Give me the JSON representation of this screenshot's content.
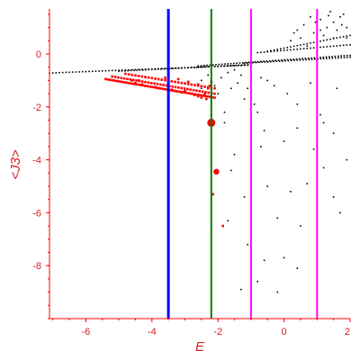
{
  "chart_data": {
    "type": "scatter",
    "title": "",
    "xlabel": "E",
    "ylabel": "<J3>",
    "xlim": [
      -7.1,
      2.0
    ],
    "ylim": [
      -10.0,
      1.7
    ],
    "grid": false,
    "colors": {
      "axis": "#ff0000",
      "black_points": "#000000",
      "red_points": "#ff0000",
      "blue_line": "#0000ff",
      "green_line": "#008000",
      "magenta_line": "#ff00ff"
    },
    "x_ticks": [
      {
        "value": -6,
        "label": "-6"
      },
      {
        "value": -4,
        "label": "-4"
      },
      {
        "value": -2,
        "label": "-2"
      },
      {
        "value": 0,
        "label": "0"
      },
      {
        "value": 2,
        "label": "2"
      }
    ],
    "y_ticks": [
      {
        "value": 0,
        "label": "0"
      },
      {
        "value": -2,
        "label": "-2"
      },
      {
        "value": -4,
        "label": "-4"
      },
      {
        "value": -6,
        "label": "-6"
      },
      {
        "value": -8,
        "label": "-8"
      }
    ],
    "x_minor_step": 0.5,
    "y_minor_step": 0.5,
    "vertical_lines": [
      {
        "x": -3.5,
        "color": "#0000ff",
        "width": 3
      },
      {
        "x": -2.2,
        "color": "#008000",
        "width": 2
      },
      {
        "x": -1.0,
        "color": "#ff00ff",
        "width": 2
      },
      {
        "x": 1.0,
        "color": "#ff00ff",
        "width": 2
      }
    ],
    "series": [
      {
        "color": "#000000",
        "marker": "small-dot",
        "bands": [
          {
            "x_start": -7.1,
            "x_end": -1.0,
            "y_start": -0.72,
            "y_end": -0.42,
            "step": 0.1
          },
          {
            "x_start": -5.0,
            "x_end": -1.0,
            "y_start": -0.65,
            "y_end": -0.4,
            "step": 0.09
          },
          {
            "x_start": -2.6,
            "x_end": 2.0,
            "y_start": -0.45,
            "y_end": -0.05,
            "step": 0.09
          },
          {
            "x_start": -1.2,
            "x_end": 2.0,
            "y_start": -0.35,
            "y_end": -0.12,
            "step": 0.09
          },
          {
            "x_start": -0.8,
            "x_end": 2.0,
            "y_start": 0.05,
            "y_end": 0.35,
            "step": 0.1
          },
          {
            "x_start": -0.5,
            "x_end": 2.0,
            "y_start": 0.1,
            "y_end": 0.7,
            "step": 0.1
          }
        ],
        "points": [
          [
            0.4,
            0.9
          ],
          [
            0.6,
            1.1
          ],
          [
            0.9,
            0.8
          ],
          [
            1.1,
            1.3
          ],
          [
            1.3,
            1.0
          ],
          [
            1.5,
            1.2
          ],
          [
            1.7,
            1.4
          ],
          [
            1.9,
            1.0
          ],
          [
            0.5,
            0.6
          ],
          [
            0.8,
            1.4
          ],
          [
            1.2,
            0.7
          ],
          [
            1.6,
            0.9
          ],
          [
            1.8,
            1.5
          ],
          [
            0.2,
            0.5
          ],
          [
            1.4,
            1.6
          ],
          [
            1.0,
            0.4
          ],
          [
            0.7,
            0.3
          ],
          [
            1.9,
            0.6
          ],
          [
            1.1,
            0.9
          ],
          [
            0.3,
            0.8
          ],
          [
            1.5,
            0.6
          ],
          [
            1.75,
            1.1
          ],
          [
            0.95,
            1.2
          ],
          [
            1.35,
            1.45
          ],
          [
            -2.5,
            -1.0
          ],
          [
            -2.3,
            -0.8
          ],
          [
            -2.1,
            -1.2
          ],
          [
            -1.9,
            -0.9
          ],
          [
            -1.7,
            -0.7
          ],
          [
            -1.5,
            -0.6
          ],
          [
            -1.3,
            -0.8
          ],
          [
            -2.0,
            -1.5
          ],
          [
            -1.6,
            -1.3
          ],
          [
            -2.2,
            -1.9
          ],
          [
            -1.8,
            -2.2
          ],
          [
            -1.2,
            -1.7
          ],
          [
            -0.9,
            -1.9
          ],
          [
            -1.4,
            -1.1
          ],
          [
            -0.7,
            -0.9
          ],
          [
            -0.3,
            -1.2
          ],
          [
            0.1,
            -1.5
          ],
          [
            0.4,
            -1.9
          ],
          [
            1.1,
            -2.3
          ],
          [
            -2.5,
            -1.3
          ],
          [
            -1.1,
            -1.3
          ],
          [
            -0.5,
            -1.0
          ],
          [
            0.8,
            -1.1
          ],
          [
            1.6,
            -1.3
          ],
          [
            -1.6,
            -4.4
          ],
          [
            -1.2,
            -5.4
          ],
          [
            -1.0,
            -5.9
          ],
          [
            -0.7,
            -3.5
          ],
          [
            -0.5,
            -5.0
          ],
          [
            -0.2,
            -6.2
          ],
          [
            0.2,
            -5.2
          ],
          [
            0.5,
            -6.5
          ],
          [
            0.7,
            -4.9
          ],
          [
            1.2,
            -4.3
          ],
          [
            1.5,
            -5.4
          ],
          [
            1.9,
            -4.0
          ],
          [
            1.7,
            -6.0
          ],
          [
            -1.7,
            -6.3
          ],
          [
            -1.1,
            -7.2
          ],
          [
            -0.6,
            -7.8
          ],
          [
            0.0,
            -7.7
          ],
          [
            0.4,
            -8.1
          ],
          [
            1.0,
            -8.0
          ],
          [
            -0.8,
            -8.6
          ],
          [
            -1.3,
            -8.9
          ],
          [
            -0.2,
            -9.0
          ],
          [
            -0.8,
            -2.2
          ],
          [
            -0.6,
            -2.9
          ],
          [
            -1.8,
            -2.6
          ],
          [
            -1.0,
            -3.1
          ],
          [
            0.0,
            -3.3
          ],
          [
            0.4,
            -2.8
          ],
          [
            1.5,
            -3.0
          ],
          [
            1.2,
            -2.6
          ],
          [
            -1.5,
            -3.8
          ],
          [
            0.9,
            -3.6
          ]
        ]
      },
      {
        "color": "#ff0000",
        "marker": "dot",
        "bands": [
          {
            "x_start": -5.4,
            "x_end": -2.1,
            "y_start": -0.95,
            "y_end": -1.65,
            "step": 0.07
          },
          {
            "x_start": -5.2,
            "x_end": -2.1,
            "y_start": -0.85,
            "y_end": -1.5,
            "step": 0.09
          },
          {
            "x_start": -4.8,
            "x_end": -2.1,
            "y_start": -0.75,
            "y_end": -1.3,
            "step": 0.1
          }
        ],
        "points": [
          [
            -4.6,
            -1.0
          ],
          [
            -4.5,
            -1.1
          ],
          [
            -4.4,
            -1.0
          ],
          [
            -4.3,
            -1.15
          ],
          [
            -3.9,
            -1.25
          ],
          [
            -3.8,
            -1.3
          ],
          [
            -3.4,
            -1.35
          ],
          [
            -3.3,
            -1.4
          ],
          [
            -3.1,
            -1.45
          ],
          [
            -3.0,
            -1.4
          ],
          [
            -2.8,
            -1.5
          ],
          [
            -2.7,
            -1.55
          ],
          [
            -2.6,
            -1.6
          ],
          [
            -2.5,
            -1.65
          ],
          [
            -2.4,
            -1.5
          ],
          [
            -2.35,
            -1.7
          ],
          [
            -2.3,
            -1.3
          ],
          [
            -2.25,
            -1.2
          ],
          [
            -3.6,
            -0.9
          ],
          [
            -3.2,
            -0.95
          ],
          [
            -2.9,
            -1.05
          ],
          [
            -2.6,
            -1.15
          ],
          [
            -2.2,
            -1.05
          ],
          [
            -2.2,
            -2.6
          ],
          [
            -2.05,
            -4.4
          ],
          [
            -2.15,
            -5.3
          ],
          [
            -1.85,
            -6.5
          ]
        ],
        "large_points": [
          [
            -2.2,
            -2.6
          ],
          [
            -2.05,
            -4.45
          ]
        ]
      }
    ]
  }
}
